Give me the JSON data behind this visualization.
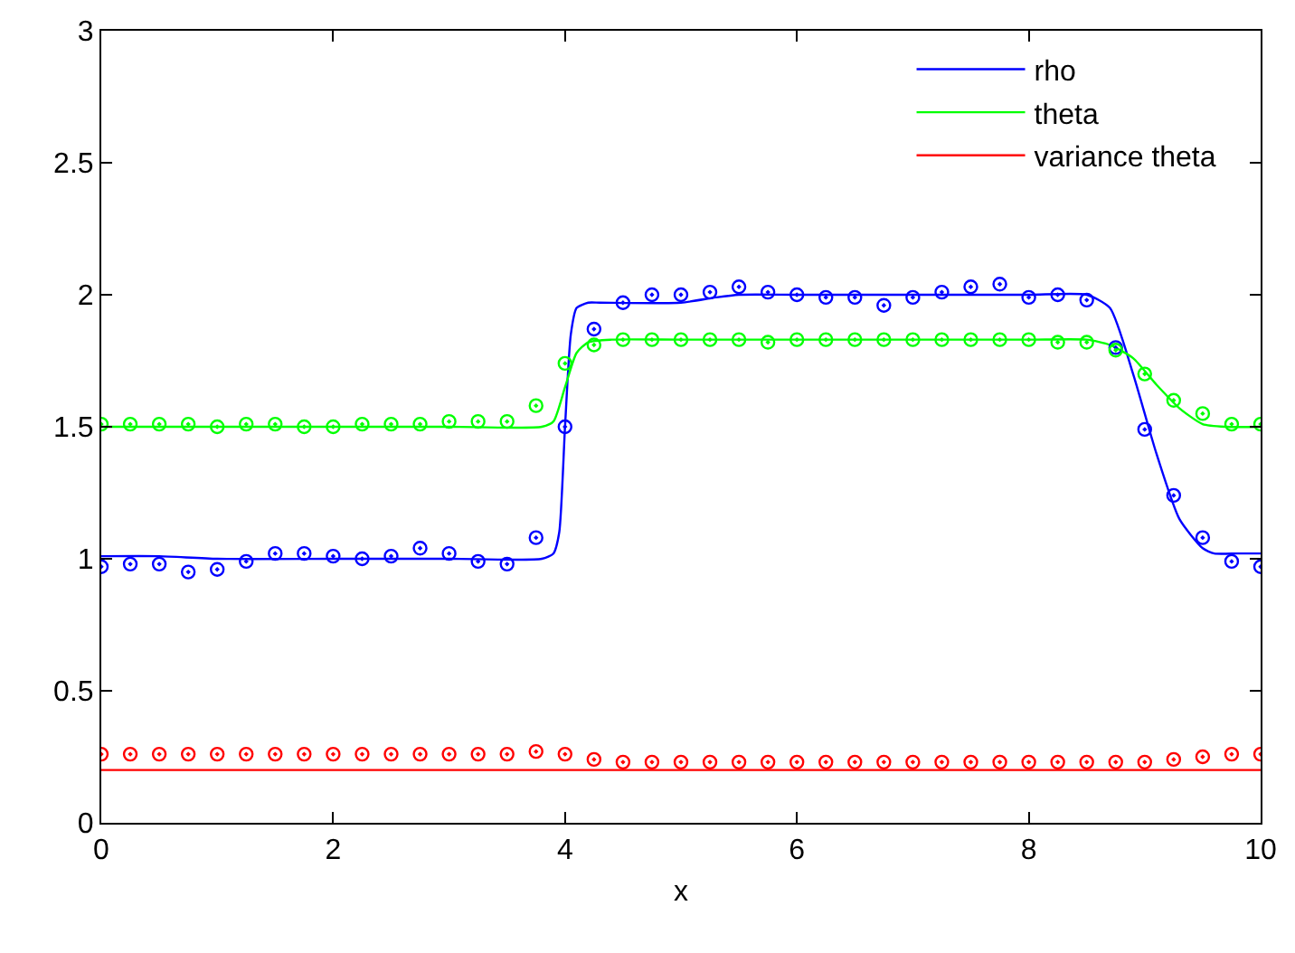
{
  "chart_data": {
    "type": "line",
    "xlabel": "x",
    "xlim": [
      0,
      10
    ],
    "xticks": [
      0,
      2,
      4,
      6,
      8,
      10
    ],
    "ylim": [
      0,
      3
    ],
    "yticks": [
      0,
      0.5,
      1,
      1.5,
      2,
      2.5,
      3
    ],
    "legend": "top right",
    "series": [
      {
        "name": "rho",
        "color": "#0000ff",
        "marker": "none",
        "x": [
          0,
          0.5,
          1,
          2,
          3,
          3.8,
          3.9,
          3.95,
          4.0,
          4.05,
          4.1,
          4.2,
          4.3,
          5.0,
          5.3,
          5.5,
          6,
          7,
          8,
          8.5,
          8.7,
          8.9,
          9.1,
          9.3,
          9.5,
          9.6,
          9.8,
          10
        ],
        "values": [
          1.01,
          1.01,
          1.0,
          1.0,
          1.0,
          1.0,
          1.02,
          1.1,
          1.5,
          1.85,
          1.95,
          1.97,
          1.97,
          1.97,
          1.99,
          2.0,
          2.0,
          2.0,
          2.0,
          2.0,
          1.95,
          1.7,
          1.4,
          1.15,
          1.04,
          1.02,
          1.02,
          1.02
        ]
      },
      {
        "name": "theta",
        "color": "#00ff00",
        "marker": "none",
        "x": [
          0,
          1,
          2,
          3,
          3.8,
          3.9,
          4.0,
          4.1,
          4.2,
          4.4,
          5,
          6,
          7,
          8,
          8.5,
          8.7,
          8.9,
          9.1,
          9.3,
          9.5,
          9.7,
          10
        ],
        "values": [
          1.5,
          1.5,
          1.5,
          1.5,
          1.5,
          1.52,
          1.65,
          1.78,
          1.82,
          1.83,
          1.83,
          1.83,
          1.83,
          1.83,
          1.83,
          1.81,
          1.76,
          1.66,
          1.57,
          1.51,
          1.5,
          1.5
        ]
      },
      {
        "name": "variance theta",
        "color": "#ff0000",
        "marker": "none",
        "x": [
          0,
          10
        ],
        "values": [
          0.2,
          0.2
        ]
      },
      {
        "color": "#0000ff",
        "marker": "circle",
        "type": "scatter",
        "x": [
          0,
          0.25,
          0.5,
          0.75,
          1,
          1.25,
          1.5,
          1.75,
          2,
          2.25,
          2.5,
          2.75,
          3,
          3.25,
          3.5,
          3.75,
          4,
          4.25,
          4.5,
          4.75,
          5,
          5.25,
          5.5,
          5.75,
          6,
          6.25,
          6.5,
          6.75,
          7,
          7.25,
          7.5,
          7.75,
          8,
          8.25,
          8.5,
          8.75,
          9,
          9.25,
          9.5,
          9.75,
          10
        ],
        "values": [
          0.97,
          0.98,
          0.98,
          0.95,
          0.96,
          0.99,
          1.02,
          1.02,
          1.01,
          1.0,
          1.01,
          1.04,
          1.02,
          0.99,
          0.98,
          1.08,
          1.5,
          1.87,
          1.97,
          2.0,
          2.0,
          2.01,
          2.03,
          2.01,
          2.0,
          1.99,
          1.99,
          1.96,
          1.99,
          2.01,
          2.03,
          2.04,
          1.99,
          2.0,
          1.98,
          1.8,
          1.49,
          1.24,
          1.08,
          0.99,
          0.97
        ]
      },
      {
        "color": "#00ff00",
        "marker": "circle",
        "type": "scatter",
        "x": [
          0,
          0.25,
          0.5,
          0.75,
          1,
          1.25,
          1.5,
          1.75,
          2,
          2.25,
          2.5,
          2.75,
          3,
          3.25,
          3.5,
          3.75,
          4,
          4.25,
          4.5,
          4.75,
          5,
          5.25,
          5.5,
          5.75,
          6,
          6.25,
          6.5,
          6.75,
          7,
          7.25,
          7.5,
          7.75,
          8,
          8.25,
          8.5,
          8.75,
          9,
          9.25,
          9.5,
          9.75,
          10
        ],
        "values": [
          1.51,
          1.51,
          1.51,
          1.51,
          1.5,
          1.51,
          1.51,
          1.5,
          1.5,
          1.51,
          1.51,
          1.51,
          1.52,
          1.52,
          1.52,
          1.58,
          1.74,
          1.81,
          1.83,
          1.83,
          1.83,
          1.83,
          1.83,
          1.82,
          1.83,
          1.83,
          1.83,
          1.83,
          1.83,
          1.83,
          1.83,
          1.83,
          1.83,
          1.82,
          1.82,
          1.79,
          1.7,
          1.6,
          1.55,
          1.51,
          1.51
        ]
      },
      {
        "color": "#ff0000",
        "marker": "circle",
        "type": "scatter",
        "x": [
          0,
          0.25,
          0.5,
          0.75,
          1,
          1.25,
          1.5,
          1.75,
          2,
          2.25,
          2.5,
          2.75,
          3,
          3.25,
          3.5,
          3.75,
          4,
          4.25,
          4.5,
          4.75,
          5,
          5.25,
          5.5,
          5.75,
          6,
          6.25,
          6.5,
          6.75,
          7,
          7.25,
          7.5,
          7.75,
          8,
          8.25,
          8.5,
          8.75,
          9,
          9.25,
          9.5,
          9.75,
          10
        ],
        "values": [
          0.26,
          0.26,
          0.26,
          0.26,
          0.26,
          0.26,
          0.26,
          0.26,
          0.26,
          0.26,
          0.26,
          0.26,
          0.26,
          0.26,
          0.26,
          0.27,
          0.26,
          0.24,
          0.23,
          0.23,
          0.23,
          0.23,
          0.23,
          0.23,
          0.23,
          0.23,
          0.23,
          0.23,
          0.23,
          0.23,
          0.23,
          0.23,
          0.23,
          0.23,
          0.23,
          0.23,
          0.23,
          0.24,
          0.25,
          0.26,
          0.26
        ]
      }
    ]
  }
}
